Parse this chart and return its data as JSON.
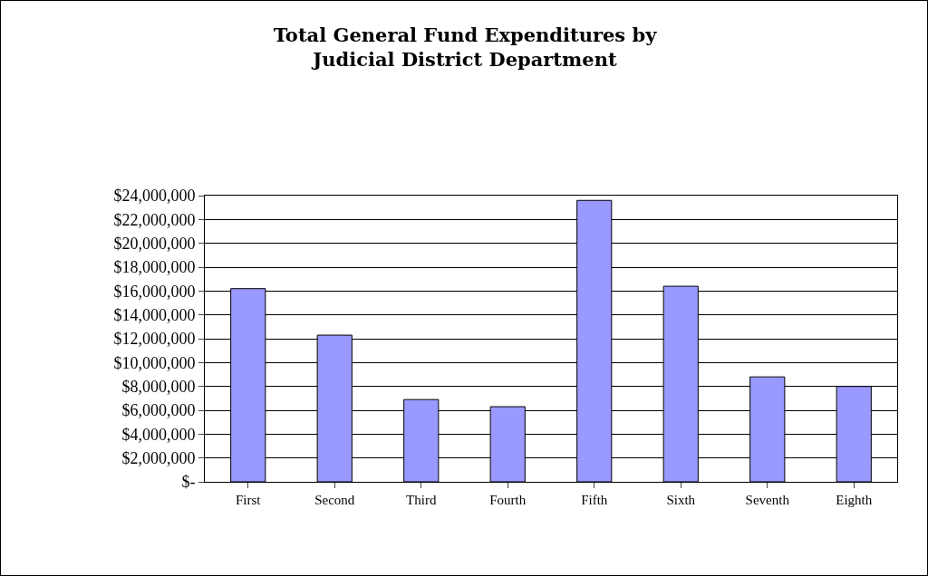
{
  "chart_data": {
    "type": "bar",
    "title": "Total General Fund Expenditures by\nJudicial District Department",
    "categories": [
      "First",
      "Second",
      "Third",
      "Fourth",
      "Fifth",
      "Sixth",
      "Seventh",
      "Eighth"
    ],
    "values": [
      16200000,
      12300000,
      6900000,
      6300000,
      23600000,
      16400000,
      8800000,
      8000000
    ],
    "color": "#9999ff",
    "ylim": [
      0,
      24000000
    ],
    "yticks": [
      {
        "value": 0,
        "label": "$-"
      },
      {
        "value": 2000000,
        "label": "$2,000,000"
      },
      {
        "value": 4000000,
        "label": "$4,000,000"
      },
      {
        "value": 6000000,
        "label": "$6,000,000"
      },
      {
        "value": 8000000,
        "label": "$8,000,000"
      },
      {
        "value": 10000000,
        "label": "$10,000,000"
      },
      {
        "value": 12000000,
        "label": "$12,000,000"
      },
      {
        "value": 14000000,
        "label": "$14,000,000"
      },
      {
        "value": 16000000,
        "label": "$16,000,000"
      },
      {
        "value": 18000000,
        "label": "$18,000,000"
      },
      {
        "value": 20000000,
        "label": "$20,000,000"
      },
      {
        "value": 22000000,
        "label": "$22,000,000"
      },
      {
        "value": 24000000,
        "label": "$24,000,000"
      }
    ],
    "grid": "y"
  }
}
